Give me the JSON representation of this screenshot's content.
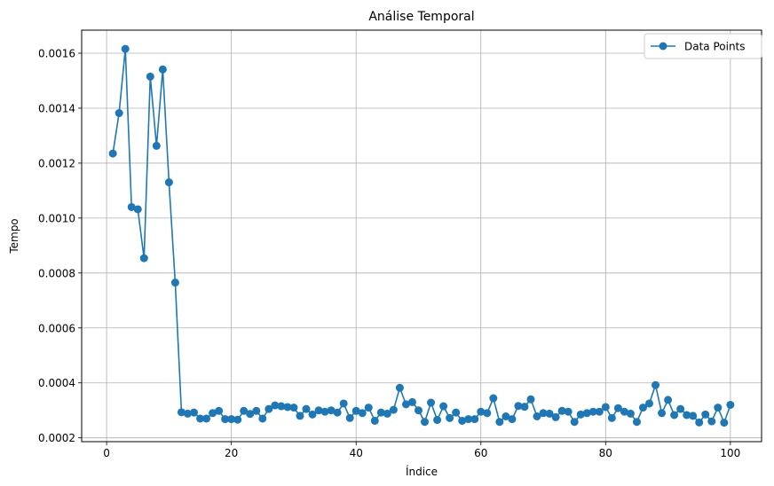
{
  "chart_data": {
    "type": "line",
    "title": "Análise Temporal",
    "xlabel": "Índice",
    "ylabel": "Tempo",
    "xlim": [
      -4,
      105
    ],
    "ylim": [
      0.000186,
      0.001684
    ],
    "xticks": [
      0,
      20,
      40,
      60,
      80,
      100
    ],
    "xtick_labels": [
      "0",
      "20",
      "40",
      "60",
      "80",
      "100"
    ],
    "yticks": [
      0.0002,
      0.0004,
      0.0006,
      0.0008,
      0.001,
      0.0012,
      0.0014,
      0.0016
    ],
    "ytick_labels": [
      "0.0002",
      "0.0004",
      "0.0006",
      "0.0008",
      "0.0010",
      "0.0012",
      "0.0014",
      "0.0016"
    ],
    "grid": true,
    "legend_position": "top-right",
    "color": "#1f77b4",
    "series": [
      {
        "name": "Data Points",
        "marker": "circle",
        "x": [
          1,
          2,
          3,
          4,
          5,
          6,
          7,
          8,
          9,
          10,
          11,
          12,
          13,
          14,
          15,
          16,
          17,
          18,
          19,
          20,
          21,
          22,
          23,
          24,
          25,
          26,
          27,
          28,
          29,
          30,
          31,
          32,
          33,
          34,
          35,
          36,
          37,
          38,
          39,
          40,
          41,
          42,
          43,
          44,
          45,
          46,
          47,
          48,
          49,
          50,
          51,
          52,
          53,
          54,
          55,
          56,
          57,
          58,
          59,
          60,
          61,
          62,
          63,
          64,
          65,
          66,
          67,
          68,
          69,
          70,
          71,
          72,
          73,
          74,
          75,
          76,
          77,
          78,
          79,
          80,
          81,
          82,
          83,
          84,
          85,
          86,
          87,
          88,
          89,
          90,
          91,
          92,
          93,
          94,
          95,
          96,
          97,
          98,
          99,
          100
        ],
        "values": [
          0.001235,
          0.001382,
          0.001616,
          0.00104,
          0.001032,
          0.000854,
          0.001515,
          0.001263,
          0.001541,
          0.00113,
          0.000765,
          0.000293,
          0.000288,
          0.000292,
          0.00027,
          0.00027,
          0.00029,
          0.000298,
          0.000268,
          0.000268,
          0.000266,
          0.000298,
          0.000287,
          0.000298,
          0.00027,
          0.000305,
          0.000318,
          0.000315,
          0.000312,
          0.00031,
          0.00028,
          0.000305,
          0.000285,
          0.0003,
          0.000295,
          0.0003,
          0.000292,
          0.000325,
          0.000272,
          0.000298,
          0.00029,
          0.00031,
          0.000262,
          0.000292,
          0.000288,
          0.000302,
          0.000382,
          0.000322,
          0.00033,
          0.0003,
          0.000258,
          0.000328,
          0.000265,
          0.000315,
          0.000272,
          0.000292,
          0.000262,
          0.000268,
          0.000268,
          0.000295,
          0.00029,
          0.000344,
          0.000258,
          0.000278,
          0.000268,
          0.000316,
          0.000313,
          0.00034,
          0.000278,
          0.00029,
          0.000288,
          0.000275,
          0.000298,
          0.000295,
          0.000258,
          0.000285,
          0.00029,
          0.000295,
          0.000295,
          0.000312,
          0.000272,
          0.000308,
          0.000295,
          0.000288,
          0.000258,
          0.00031,
          0.000325,
          0.000392,
          0.00029,
          0.000338,
          0.000283,
          0.000305,
          0.000283,
          0.00028,
          0.000256,
          0.000285,
          0.00026,
          0.00031,
          0.000255,
          0.00032
        ]
      }
    ]
  }
}
